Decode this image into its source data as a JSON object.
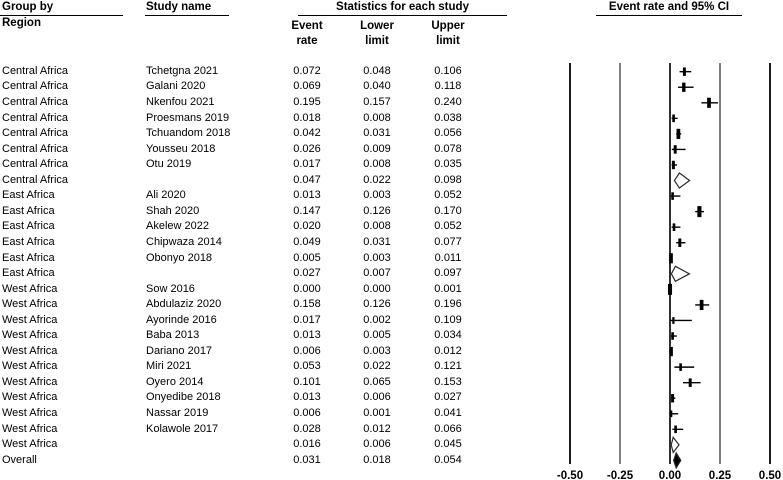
{
  "headers": {
    "group_by": "Group by",
    "region": "Region",
    "study_name": "Study name",
    "stats": "Statistics for each study",
    "stat_columns": [
      [
        "Event",
        "rate"
      ],
      [
        "Lower",
        "limit"
      ],
      [
        "Upper",
        "limit"
      ]
    ],
    "plot": "Event rate and 95% CI"
  },
  "chart_data": {
    "type": "forest",
    "title": "Event rate and 95% CI",
    "xlabel": "Event rate",
    "xlim": [
      -0.5,
      0.5
    ],
    "xticks": [
      "-0.50",
      "-0.25",
      "0.00",
      "0.25",
      "0.50"
    ],
    "grid": "vertical-reference-lines",
    "legend_position": "none",
    "rows": [
      {
        "region": "Central Africa",
        "study": "Tchetgna 2021",
        "event": "0.072",
        "lower": "0.048",
        "upper": "0.106",
        "kind": "study",
        "weight": 2.5
      },
      {
        "region": "Central Africa",
        "study": "Galani 2020",
        "event": "0.069",
        "lower": "0.040",
        "upper": "0.118",
        "kind": "study",
        "weight": 3
      },
      {
        "region": "Central Africa",
        "study": "Nkenfou 2021",
        "event": "0.195",
        "lower": "0.157",
        "upper": "0.240",
        "kind": "study",
        "weight": 3.5
      },
      {
        "region": "Central Africa",
        "study": "Proesmans 2019",
        "event": "0.018",
        "lower": "0.008",
        "upper": "0.038",
        "kind": "study",
        "weight": 2
      },
      {
        "region": "Central Africa",
        "study": "Tchuandom 2018",
        "event": "0.042",
        "lower": "0.031",
        "upper": "0.056",
        "kind": "study",
        "weight": 3.5
      },
      {
        "region": "Central Africa",
        "study": "Yousseu 2018",
        "event": "0.026",
        "lower": "0.009",
        "upper": "0.078",
        "kind": "study",
        "weight": 2.5
      },
      {
        "region": "Central Africa",
        "study": "Otu 2019",
        "event": "0.017",
        "lower": "0.008",
        "upper": "0.035",
        "kind": "study",
        "weight": 2.5
      },
      {
        "region": "Central Africa",
        "study": "",
        "event": "0.047",
        "lower": "0.022",
        "upper": "0.098",
        "kind": "summary",
        "weight": 0
      },
      {
        "region": "East Africa",
        "study": "Ali 2020",
        "event": "0.013",
        "lower": "0.003",
        "upper": "0.052",
        "kind": "study",
        "weight": 2
      },
      {
        "region": "East Africa",
        "study": "Shah 2020",
        "event": "0.147",
        "lower": "0.126",
        "upper": "0.170",
        "kind": "study",
        "weight": 4
      },
      {
        "region": "East Africa",
        "study": "Akelew 2022",
        "event": "0.020",
        "lower": "0.008",
        "upper": "0.052",
        "kind": "study",
        "weight": 2
      },
      {
        "region": "East Africa",
        "study": "Chipwaza 2014",
        "event": "0.049",
        "lower": "0.031",
        "upper": "0.077",
        "kind": "study",
        "weight": 2.5
      },
      {
        "region": "East Africa",
        "study": "Obonyo 2018",
        "event": "0.005",
        "lower": "0.003",
        "upper": "0.011",
        "kind": "study",
        "weight": 3.5
      },
      {
        "region": "East Africa",
        "study": "",
        "event": "0.027",
        "lower": "0.007",
        "upper": "0.097",
        "kind": "summary",
        "weight": 0
      },
      {
        "region": "West Africa",
        "study": "Sow 2016",
        "event": "0.000",
        "lower": "0.000",
        "upper": "0.001",
        "kind": "study",
        "weight": 4
      },
      {
        "region": "West Africa",
        "study": "Abdulaziz 2020",
        "event": "0.158",
        "lower": "0.126",
        "upper": "0.196",
        "kind": "study",
        "weight": 3.5
      },
      {
        "region": "West Africa",
        "study": "Ayorinde 2016",
        "event": "0.017",
        "lower": "0.002",
        "upper": "0.109",
        "kind": "study",
        "weight": 1.5
      },
      {
        "region": "West Africa",
        "study": "Baba 2013",
        "event": "0.013",
        "lower": "0.005",
        "upper": "0.034",
        "kind": "study",
        "weight": 2
      },
      {
        "region": "West Africa",
        "study": "Dariano 2017",
        "event": "0.006",
        "lower": "0.003",
        "upper": "0.012",
        "kind": "study",
        "weight": 3
      },
      {
        "region": "West Africa",
        "study": "Miri 2021",
        "event": "0.053",
        "lower": "0.022",
        "upper": "0.121",
        "kind": "study",
        "weight": 2
      },
      {
        "region": "West Africa",
        "study": "Oyero 2014",
        "event": "0.101",
        "lower": "0.065",
        "upper": "0.153",
        "kind": "study",
        "weight": 2.5
      },
      {
        "region": "West Africa",
        "study": "Onyedibe 2018",
        "event": "0.013",
        "lower": "0.006",
        "upper": "0.027",
        "kind": "study",
        "weight": 2.5
      },
      {
        "region": "West Africa",
        "study": "Nassar 2019",
        "event": "0.006",
        "lower": "0.001",
        "upper": "0.041",
        "kind": "study",
        "weight": 1.5
      },
      {
        "region": "West Africa",
        "study": "Kolawole 2017",
        "event": "0.028",
        "lower": "0.012",
        "upper": "0.066",
        "kind": "study",
        "weight": 2
      },
      {
        "region": "West Africa",
        "study": "",
        "event": "0.016",
        "lower": "0.006",
        "upper": "0.045",
        "kind": "summary",
        "weight": 0
      },
      {
        "region": "Overall",
        "study": "",
        "event": "0.031",
        "lower": "0.018",
        "upper": "0.054",
        "kind": "overall",
        "weight": 0
      }
    ]
  }
}
